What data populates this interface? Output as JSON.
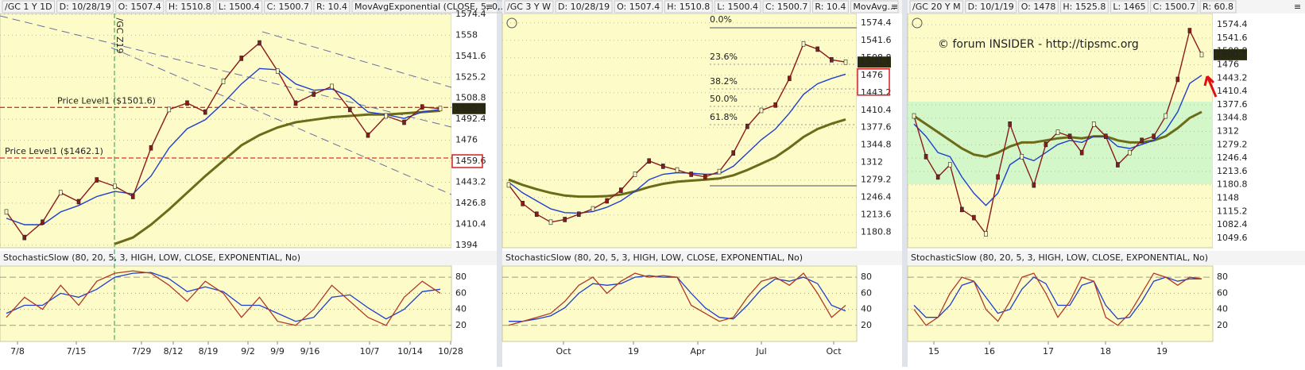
{
  "panels": [
    {
      "header": [
        "/GC 1 Y 1D",
        "D: 10/28/19",
        "O: 1507.4",
        "H: 1510.8",
        "L: 1500.4",
        "C: 1500.7",
        "R: 10.4",
        "MovAvgExponential (CLOSE, 5, 0,..."
      ],
      "ylim": [
        1392,
        1575
      ],
      "yticks": [
        1574.4,
        1558,
        1541.6,
        1525.2,
        1508.8,
        1492.4,
        1476,
        1459.6,
        1443.2,
        1426.8,
        1410.4,
        1394
      ],
      "last": 1500.7,
      "close": [
        1420,
        1400,
        1412,
        1435,
        1428,
        1445,
        1440,
        1432,
        1470,
        1500,
        1505,
        1498,
        1522,
        1540,
        1552,
        1530,
        1505,
        1512,
        1518,
        1500,
        1480,
        1495,
        1490,
        1502,
        1500.7
      ],
      "ema": [
        1415,
        1410,
        1410,
        1420,
        1425,
        1432,
        1436,
        1434,
        1448,
        1470,
        1485,
        1492,
        1505,
        1520,
        1532,
        1531,
        1520,
        1515,
        1516,
        1510,
        1498,
        1496,
        1493,
        1498,
        1500
      ],
      "sma": [
        null,
        null,
        null,
        null,
        null,
        null,
        1395,
        1400,
        1410,
        1422,
        1435,
        1448,
        1460,
        1472,
        1480,
        1486,
        1490,
        1492,
        1494,
        1495,
        1496,
        1496,
        1497,
        1498,
        1499
      ],
      "levels": [
        {
          "label": "Price Level1 ($1501.6)",
          "value": 1501.6
        },
        {
          "label": "Price Level1 ($1462.1)",
          "value": 1462.1
        }
      ],
      "contract": "/GC Z19",
      "study": "StochasticSlow (80, 20, 5, 3, HIGH, LOW, CLOSE, EXPONENTIAL, No)",
      "stoch_ylim": [
        0,
        94
      ],
      "stoch_ticks": [
        80,
        60,
        40,
        20
      ],
      "stoch_k": [
        30,
        55,
        40,
        70,
        45,
        75,
        85,
        88,
        85,
        70,
        50,
        75,
        60,
        30,
        55,
        25,
        20,
        40,
        70,
        50,
        30,
        20,
        55,
        75,
        60
      ],
      "stoch_d": [
        35,
        45,
        45,
        60,
        55,
        65,
        80,
        85,
        86,
        78,
        62,
        68,
        62,
        45,
        45,
        35,
        25,
        30,
        55,
        58,
        42,
        28,
        40,
        62,
        65
      ],
      "xlabels": [
        "7/8",
        "7/15",
        "7/29",
        "8/12",
        "8/19",
        "9/2",
        "9/9",
        "9/16",
        "10/7",
        "10/14",
        "10/28"
      ]
    },
    {
      "header": [
        "/GC 3 Y W",
        "D: 10/28/19",
        "O: 1507.4",
        "H: 1510.8",
        "L: 1500.4",
        "C: 1500.7",
        "R: 10.4",
        "MovAvg..."
      ],
      "ylim": [
        1152,
        1592
      ],
      "yticks": [
        1574.4,
        1541.6,
        1508.8,
        1476,
        1443.2,
        1410.4,
        1377.6,
        1344.8,
        1312,
        1279.2,
        1246.4,
        1213.6,
        1180.8
      ],
      "last": 1500.7,
      "close": [
        1270,
        1235,
        1215,
        1200,
        1205,
        1215,
        1225,
        1240,
        1260,
        1290,
        1315,
        1305,
        1298,
        1290,
        1285,
        1295,
        1330,
        1380,
        1410,
        1420,
        1470,
        1535,
        1525,
        1505,
        1500.7
      ],
      "ema": [
        1275,
        1255,
        1240,
        1225,
        1218,
        1217,
        1220,
        1228,
        1240,
        1258,
        1280,
        1290,
        1293,
        1292,
        1290,
        1291,
        1305,
        1330,
        1355,
        1375,
        1405,
        1440,
        1460,
        1470,
        1478
      ],
      "sma": [
        1280,
        1270,
        1262,
        1255,
        1250,
        1248,
        1248,
        1249,
        1252,
        1258,
        1266,
        1272,
        1276,
        1278,
        1280,
        1282,
        1288,
        1298,
        1310,
        1322,
        1340,
        1360,
        1375,
        1385,
        1393
      ],
      "fib": [
        "0.0%",
        "23.6%",
        "38.2%",
        "50.0%",
        "61.8%"
      ],
      "study": "StochasticSlow (80, 20, 5, 3, HIGH, LOW, CLOSE, EXPONENTIAL, No)",
      "stoch_ylim": [
        0,
        94
      ],
      "stoch_ticks": [
        80,
        60,
        40,
        20
      ],
      "stoch_k": [
        20,
        25,
        30,
        35,
        50,
        70,
        80,
        60,
        75,
        85,
        80,
        82,
        80,
        45,
        35,
        25,
        30,
        55,
        75,
        80,
        70,
        85,
        60,
        30,
        45
      ],
      "stoch_d": [
        25,
        25,
        28,
        32,
        42,
        60,
        72,
        70,
        72,
        80,
        82,
        80,
        80,
        60,
        42,
        30,
        28,
        45,
        65,
        78,
        75,
        80,
        72,
        45,
        38
      ],
      "xlabels": [
        "Oct",
        "19",
        "Apr",
        "Jul",
        "Oct"
      ]
    },
    {
      "header": [
        "/GC 20 Y M",
        "D: 10/1/19",
        "O: 1478",
        "H: 1525.8",
        "L: 1465",
        "C: 1500.7",
        "R: 60.8"
      ],
      "ylim": [
        1026,
        1602
      ],
      "yticks": [
        1574.4,
        1541.6,
        1508.8,
        1476,
        1443.2,
        1410.4,
        1377.6,
        1344.8,
        1312,
        1279.2,
        1246.4,
        1213.6,
        1180.8,
        1148,
        1115.2,
        1082.4,
        1049.6
      ],
      "last": 1500.7,
      "close": [
        1350,
        1250,
        1200,
        1230,
        1120,
        1100,
        1060,
        1200,
        1330,
        1250,
        1180,
        1280,
        1310,
        1300,
        1260,
        1330,
        1300,
        1230,
        1260,
        1290,
        1300,
        1350,
        1440,
        1560,
        1500.7
      ],
      "ema": [
        1330,
        1300,
        1260,
        1250,
        1200,
        1160,
        1130,
        1160,
        1230,
        1250,
        1240,
        1260,
        1280,
        1290,
        1285,
        1300,
        1300,
        1275,
        1270,
        1280,
        1290,
        1315,
        1360,
        1430,
        1450
      ],
      "sma": [
        1350,
        1330,
        1310,
        1290,
        1270,
        1255,
        1250,
        1260,
        1275,
        1285,
        1285,
        1290,
        1295,
        1298,
        1295,
        1300,
        1300,
        1290,
        1285,
        1285,
        1290,
        1300,
        1320,
        1345,
        1360
      ],
      "watermark": "© forum INSIDER - http://tipsmc.org",
      "study": "StochasticSlow (80, 20, 5, 3, HIGH, LOW, CLOSE, EXPONENTIAL, No)",
      "stoch_ylim": [
        0,
        94
      ],
      "stoch_ticks": [
        80,
        60,
        40,
        20
      ],
      "stoch_k": [
        40,
        20,
        30,
        60,
        80,
        75,
        40,
        25,
        50,
        80,
        85,
        60,
        30,
        50,
        80,
        75,
        30,
        20,
        35,
        60,
        85,
        80,
        70,
        80,
        78
      ],
      "stoch_d": [
        45,
        30,
        30,
        45,
        70,
        75,
        55,
        35,
        40,
        65,
        80,
        72,
        45,
        45,
        70,
        75,
        45,
        28,
        30,
        50,
        75,
        80,
        75,
        78,
        78
      ],
      "xlabels": [
        "15",
        "16",
        "17",
        "18",
        "19"
      ]
    }
  ]
}
